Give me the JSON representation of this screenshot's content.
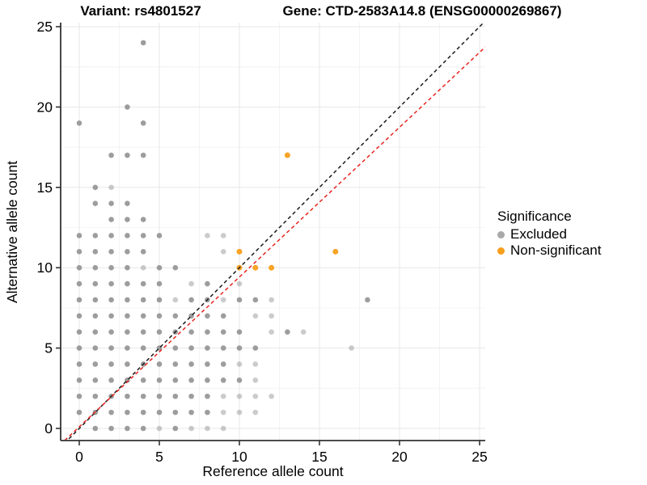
{
  "titles": {
    "variant": "Variant: rs4801527",
    "gene": "Gene: CTD-2583A14.8 (ENSG00000269867)"
  },
  "axes": {
    "x_label": "Reference allele count",
    "y_label": "Alternative allele count",
    "x_ticks": [
      0,
      5,
      10,
      15,
      20,
      25
    ],
    "y_ticks": [
      0,
      5,
      10,
      15,
      20,
      25
    ],
    "minor_gridlines": [
      2.5,
      7.5,
      12.5,
      17.5,
      22.5
    ],
    "x_range": [
      -1.2,
      25.4
    ],
    "y_range": [
      -0.75,
      25.2
    ]
  },
  "legend": {
    "title": "Significance",
    "items": [
      {
        "label": "Excluded",
        "color": "#A9A9A9"
      },
      {
        "label": "Non-significant",
        "color": "#F99E1B"
      }
    ]
  },
  "colors": {
    "excluded_dot": "#8C8C8C",
    "non_significant_dot": "#F99E1B",
    "identity_line": "#1A1A1A",
    "fit_line": "#E8251F",
    "grid_major": "#E7E7E7",
    "grid_minor": "#F4F4F4",
    "axis": "#333333"
  },
  "chart_data": {
    "type": "scatter",
    "title": "Variant: rs4801527 / Gene: CTD-2583A14.8 (ENSG00000269867)",
    "xlabel": "Reference allele count",
    "ylabel": "Alternative allele count",
    "xlim": [
      -1.2,
      25.4
    ],
    "ylim": [
      -0.75,
      25.2
    ],
    "grid": "on",
    "legend_position": "right",
    "series": [
      {
        "name": "Excluded",
        "note": "points as [x, y, shade] where shade 1 = darker (overplotted), 0 = lighter (single)",
        "points": [
          [
            1,
            0,
            1
          ],
          [
            2,
            0,
            1
          ],
          [
            3,
            0,
            1
          ],
          [
            4,
            0,
            1
          ],
          [
            5,
            0,
            0
          ],
          [
            6,
            0,
            1
          ],
          [
            7,
            0,
            0
          ],
          [
            8,
            0,
            0
          ],
          [
            9,
            0,
            0
          ],
          [
            0,
            1,
            1
          ],
          [
            1,
            1,
            1
          ],
          [
            2,
            1,
            1
          ],
          [
            3,
            1,
            1
          ],
          [
            4,
            1,
            1
          ],
          [
            5,
            1,
            1
          ],
          [
            6,
            1,
            1
          ],
          [
            7,
            1,
            1
          ],
          [
            8,
            1,
            1
          ],
          [
            9,
            1,
            0
          ],
          [
            10,
            1,
            0
          ],
          [
            11,
            1,
            0
          ],
          [
            0,
            2,
            1
          ],
          [
            1,
            2,
            1
          ],
          [
            2,
            2,
            1
          ],
          [
            3,
            2,
            1
          ],
          [
            4,
            2,
            1
          ],
          [
            5,
            2,
            1
          ],
          [
            6,
            2,
            1
          ],
          [
            7,
            2,
            1
          ],
          [
            8,
            2,
            1
          ],
          [
            9,
            2,
            0
          ],
          [
            10,
            2,
            0
          ],
          [
            11,
            2,
            0
          ],
          [
            12,
            2,
            0
          ],
          [
            0,
            3,
            1
          ],
          [
            1,
            3,
            1
          ],
          [
            2,
            3,
            1
          ],
          [
            3,
            3,
            1
          ],
          [
            4,
            3,
            1
          ],
          [
            5,
            3,
            1
          ],
          [
            6,
            3,
            1
          ],
          [
            7,
            3,
            1
          ],
          [
            8,
            3,
            1
          ],
          [
            9,
            3,
            1
          ],
          [
            10,
            3,
            1
          ],
          [
            11,
            3,
            0
          ],
          [
            0,
            4,
            1
          ],
          [
            1,
            4,
            1
          ],
          [
            2,
            4,
            1
          ],
          [
            3,
            4,
            1
          ],
          [
            4,
            4,
            1
          ],
          [
            5,
            4,
            1
          ],
          [
            6,
            4,
            1
          ],
          [
            7,
            4,
            1
          ],
          [
            8,
            4,
            1
          ],
          [
            9,
            4,
            1
          ],
          [
            10,
            4,
            0
          ],
          [
            11,
            4,
            0
          ],
          [
            0,
            5,
            1
          ],
          [
            1,
            5,
            1
          ],
          [
            2,
            5,
            1
          ],
          [
            3,
            5,
            1
          ],
          [
            4,
            5,
            1
          ],
          [
            5,
            5,
            1
          ],
          [
            6,
            5,
            1
          ],
          [
            7,
            5,
            1
          ],
          [
            8,
            5,
            1
          ],
          [
            9,
            5,
            1
          ],
          [
            10,
            5,
            1
          ],
          [
            11,
            5,
            1
          ],
          [
            17,
            5,
            0
          ],
          [
            0,
            6,
            1
          ],
          [
            1,
            6,
            1
          ],
          [
            2,
            6,
            1
          ],
          [
            3,
            6,
            1
          ],
          [
            4,
            6,
            1
          ],
          [
            5,
            6,
            1
          ],
          [
            6,
            6,
            1
          ],
          [
            7,
            6,
            1
          ],
          [
            8,
            6,
            1
          ],
          [
            9,
            6,
            1
          ],
          [
            10,
            6,
            1
          ],
          [
            12,
            6,
            0
          ],
          [
            13,
            6,
            1
          ],
          [
            14,
            6,
            0
          ],
          [
            0,
            7,
            1
          ],
          [
            1,
            7,
            1
          ],
          [
            2,
            7,
            1
          ],
          [
            3,
            7,
            1
          ],
          [
            4,
            7,
            1
          ],
          [
            5,
            7,
            1
          ],
          [
            6,
            7,
            1
          ],
          [
            7,
            7,
            1
          ],
          [
            8,
            7,
            1
          ],
          [
            9,
            7,
            1
          ],
          [
            11,
            7,
            0
          ],
          [
            12,
            7,
            0
          ],
          [
            0,
            8,
            1
          ],
          [
            1,
            8,
            1
          ],
          [
            2,
            8,
            1
          ],
          [
            3,
            8,
            1
          ],
          [
            4,
            8,
            1
          ],
          [
            5,
            8,
            1
          ],
          [
            6,
            8,
            0
          ],
          [
            7,
            8,
            1
          ],
          [
            8,
            8,
            1
          ],
          [
            9,
            8,
            0
          ],
          [
            10,
            8,
            1
          ],
          [
            11,
            8,
            1
          ],
          [
            12,
            8,
            0
          ],
          [
            18,
            8,
            1
          ],
          [
            0,
            9,
            1
          ],
          [
            1,
            9,
            1
          ],
          [
            2,
            9,
            1
          ],
          [
            3,
            9,
            1
          ],
          [
            4,
            9,
            1
          ],
          [
            5,
            9,
            1
          ],
          [
            7,
            9,
            0
          ],
          [
            8,
            9,
            1
          ],
          [
            10,
            9,
            0
          ],
          [
            0,
            10,
            1
          ],
          [
            1,
            10,
            1
          ],
          [
            2,
            10,
            1
          ],
          [
            3,
            10,
            1
          ],
          [
            4,
            10,
            0
          ],
          [
            5,
            10,
            1
          ],
          [
            6,
            10,
            1
          ],
          [
            0,
            11,
            1
          ],
          [
            1,
            11,
            1
          ],
          [
            2,
            11,
            1
          ],
          [
            3,
            11,
            1
          ],
          [
            4,
            11,
            1
          ],
          [
            9,
            11,
            0
          ],
          [
            0,
            12,
            1
          ],
          [
            1,
            12,
            1
          ],
          [
            2,
            12,
            1
          ],
          [
            3,
            12,
            1
          ],
          [
            4,
            12,
            1
          ],
          [
            5,
            12,
            1
          ],
          [
            8,
            12,
            0
          ],
          [
            9,
            12,
            0
          ],
          [
            2,
            13,
            1
          ],
          [
            3,
            13,
            1
          ],
          [
            4,
            13,
            1
          ],
          [
            1,
            14,
            1
          ],
          [
            2,
            14,
            1
          ],
          [
            3,
            14,
            1
          ],
          [
            1,
            15,
            1
          ],
          [
            2,
            15,
            0
          ],
          [
            2,
            17,
            1
          ],
          [
            3,
            17,
            1
          ],
          [
            4,
            17,
            1
          ],
          [
            0,
            19,
            1
          ],
          [
            4,
            19,
            1
          ],
          [
            3,
            20,
            1
          ],
          [
            4,
            24,
            1
          ]
        ]
      },
      {
        "name": "Non-significant",
        "points": [
          [
            10,
            10
          ],
          [
            11,
            10
          ],
          [
            12,
            10
          ],
          [
            10,
            11
          ],
          [
            16,
            11
          ],
          [
            13,
            17
          ]
        ]
      }
    ],
    "reference_lines": [
      {
        "name": "identity",
        "slope": 1,
        "intercept": 0,
        "style": "dashed",
        "color": "#1A1A1A"
      },
      {
        "name": "fit",
        "slope": 0.932,
        "intercept": 0.1,
        "style": "dashed",
        "color": "#E8251F"
      }
    ]
  }
}
